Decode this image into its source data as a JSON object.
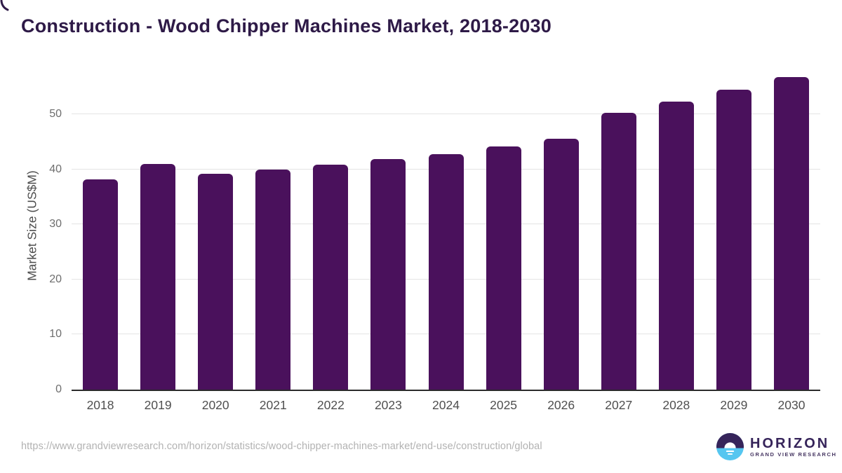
{
  "title": "Construction - Wood Chipper Machines Market, 2018-2030",
  "colors": {
    "bar": "#4a115c",
    "title_text": "#2e1a47",
    "gridline": "#e4e4e4",
    "axis_line": "#2b2b2b",
    "x_tick_text": "#4f4f4f",
    "y_tick_text": "#6e6e6e",
    "source_text": "#b2b2b2",
    "logo_purple": "#36245a",
    "logo_blue": "#55c6f0"
  },
  "chart_data": {
    "type": "bar",
    "title": "Construction - Wood Chipper Machines Market, 2018-2030",
    "categories": [
      "2018",
      "2019",
      "2020",
      "2021",
      "2022",
      "2023",
      "2024",
      "2025",
      "2026",
      "2027",
      "2028",
      "2029",
      "2030"
    ],
    "values": [
      38.1,
      41.0,
      39.2,
      40.0,
      40.8,
      41.8,
      42.8,
      44.2,
      45.6,
      50.2,
      52.3,
      54.4,
      56.7
    ],
    "xlabel": "",
    "ylabel": "Market Size (US$M)",
    "ylim": [
      0,
      58
    ],
    "yticks": [
      0,
      10,
      20,
      30,
      40,
      50
    ],
    "grid": true,
    "legend": "none",
    "bar_color": "#4a115c"
  },
  "footer": {
    "source_url": "https://www.grandviewresearch.com/horizon/statistics/wood-chipper-machines-market/end-use/construction/global",
    "logo": {
      "name": "HORIZON",
      "subtext": "GRAND VIEW RESEARCH"
    }
  }
}
